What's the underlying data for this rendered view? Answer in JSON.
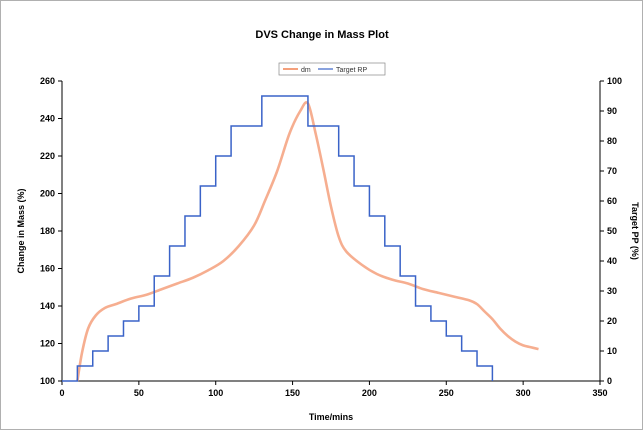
{
  "chart_data": {
    "type": "line",
    "title": "DVS Change in Mass Plot",
    "xlabel": "Time/mins",
    "ylabel": "Change in Mass (%)",
    "y2label": "Target PP (%)",
    "xlim": [
      0,
      350
    ],
    "ylim": [
      100,
      260
    ],
    "y2lim": [
      0,
      100
    ],
    "xticks": [
      0,
      50,
      100,
      150,
      200,
      250,
      300,
      350
    ],
    "yticks": [
      100,
      120,
      140,
      160,
      180,
      200,
      220,
      240,
      260
    ],
    "y2ticks": [
      0,
      10,
      20,
      30,
      40,
      50,
      60,
      70,
      80,
      90,
      100
    ],
    "grid": false,
    "legend": "top-center",
    "series": [
      {
        "name": "dm",
        "color": "#f4a07c",
        "axis": "left",
        "x": [
          10,
          13,
          17,
          22,
          28,
          35,
          45,
          55,
          65,
          75,
          85,
          95,
          105,
          115,
          125,
          132,
          140,
          148,
          155,
          160,
          165,
          170,
          175,
          180,
          185,
          195,
          205,
          215,
          225,
          235,
          245,
          255,
          265,
          270,
          275,
          280,
          285,
          290,
          295,
          300,
          305,
          310
        ],
        "values": [
          100,
          115,
          128,
          135,
          139,
          141,
          144,
          146,
          149,
          152,
          155,
          159,
          164,
          172,
          183,
          196,
          212,
          232,
          244,
          248,
          232,
          213,
          193,
          177,
          169,
          162,
          157,
          154,
          152,
          149,
          147,
          145,
          143,
          141,
          137,
          133,
          128,
          124,
          121,
          119,
          118,
          117
        ]
      },
      {
        "name": "Target RP",
        "color": "#3a63c8",
        "axis": "right",
        "step_x": [
          0,
          10,
          20,
          30,
          40,
          50,
          60,
          70,
          80,
          90,
          100,
          110,
          130,
          160,
          180,
          190,
          200,
          210,
          220,
          230,
          240,
          250,
          260,
          270,
          280
        ],
        "step_values": [
          0,
          5,
          10,
          15,
          20,
          25,
          35,
          45,
          55,
          65,
          75,
          85,
          95,
          85,
          75,
          65,
          55,
          45,
          35,
          25,
          20,
          15,
          10,
          5,
          0
        ]
      }
    ]
  }
}
